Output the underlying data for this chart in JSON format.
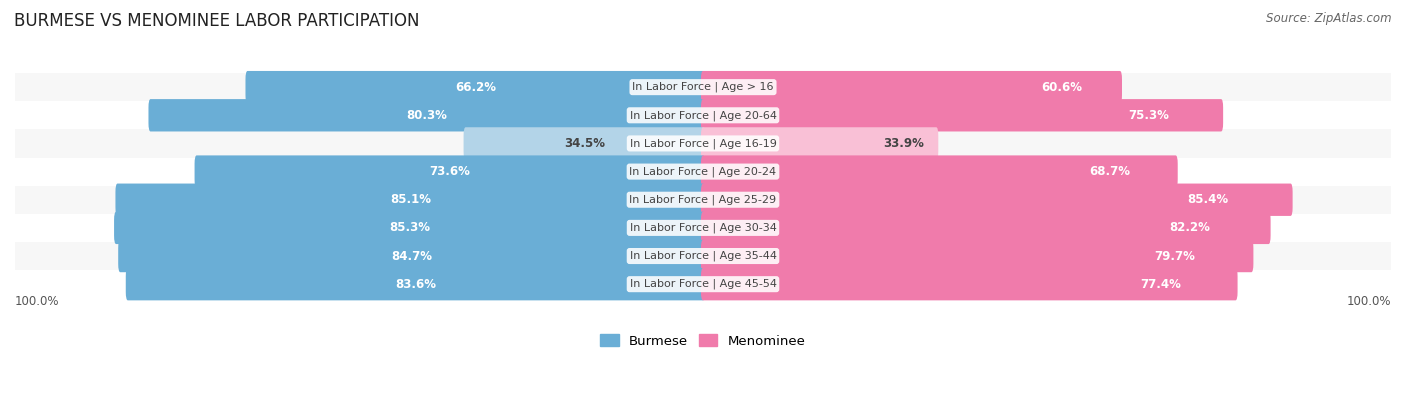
{
  "title": "BURMESE VS MENOMINEE LABOR PARTICIPATION",
  "source": "Source: ZipAtlas.com",
  "categories": [
    "In Labor Force | Age > 16",
    "In Labor Force | Age 20-64",
    "In Labor Force | Age 16-19",
    "In Labor Force | Age 20-24",
    "In Labor Force | Age 25-29",
    "In Labor Force | Age 30-34",
    "In Labor Force | Age 35-44",
    "In Labor Force | Age 45-54"
  ],
  "burmese": [
    66.2,
    80.3,
    34.5,
    73.6,
    85.1,
    85.3,
    84.7,
    83.6
  ],
  "menominee": [
    60.6,
    75.3,
    33.9,
    68.7,
    85.4,
    82.2,
    79.7,
    77.4
  ],
  "burmese_color": "#6aaed6",
  "burmese_color_light": "#b3d4e8",
  "menominee_color": "#f07bab",
  "menominee_color_light": "#f9c0d6",
  "row_bg_even": "#f7f7f7",
  "row_bg_odd": "#ffffff",
  "label_color_dark": "#444444",
  "label_color_white": "#ffffff",
  "max_val": 100.0,
  "bar_height": 0.55,
  "title_fontsize": 12,
  "label_fontsize": 8.5,
  "source_fontsize": 8.5,
  "legend_fontsize": 9.5
}
